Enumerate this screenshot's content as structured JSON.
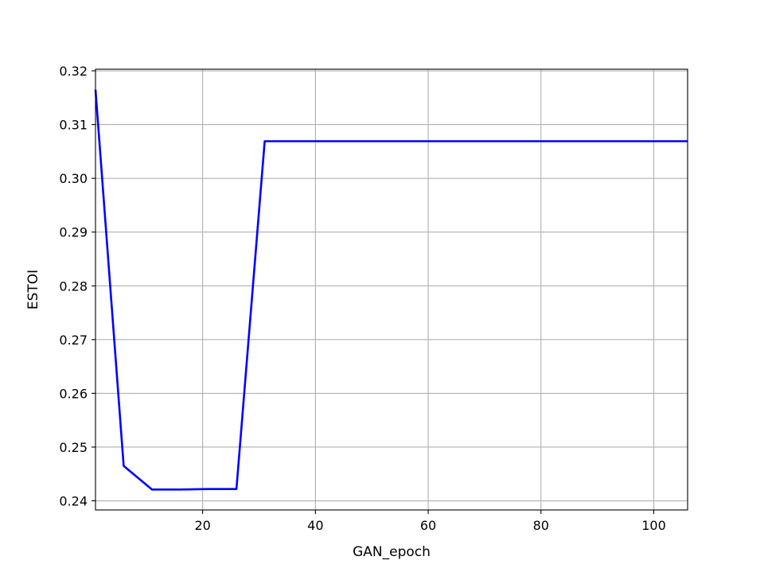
{
  "chart_data": {
    "type": "line",
    "title": "",
    "xlabel": "GAN_epoch",
    "ylabel": "ESTOI",
    "xlim": [
      1,
      106
    ],
    "ylim": [
      0.2383,
      0.3203
    ],
    "xticks": [
      20,
      40,
      60,
      80,
      100
    ],
    "yticks": [
      0.24,
      0.25,
      0.26,
      0.27,
      0.28,
      0.29,
      0.3,
      0.31,
      0.32
    ],
    "ytick_labels": [
      "0.24",
      "0.25",
      "0.26",
      "0.27",
      "0.28",
      "0.29",
      "0.30",
      "0.31",
      "0.32"
    ],
    "grid": true,
    "series": [
      {
        "color": "#0000ff",
        "x": [
          1,
          6,
          11,
          16,
          21,
          26,
          31,
          36,
          41,
          46,
          51,
          56,
          61,
          66,
          71,
          76,
          81,
          86,
          91,
          96,
          101,
          106
        ],
        "y": [
          0.3165,
          0.2465,
          0.2421,
          0.2421,
          0.2422,
          0.2422,
          0.3069,
          0.3069,
          0.3069,
          0.3069,
          0.3069,
          0.3069,
          0.3069,
          0.3069,
          0.3069,
          0.3069,
          0.3069,
          0.3069,
          0.3069,
          0.3069,
          0.3069,
          0.3069
        ]
      }
    ]
  }
}
